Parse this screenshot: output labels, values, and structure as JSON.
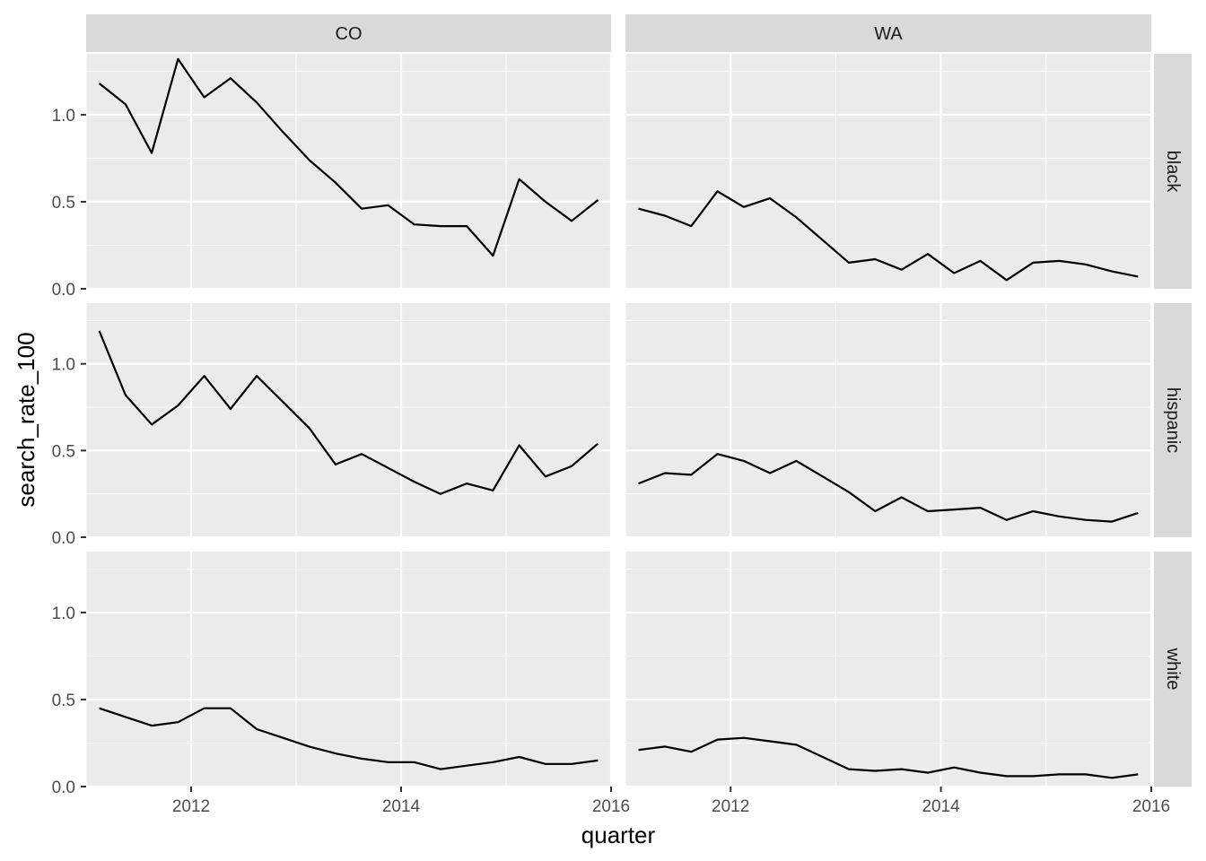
{
  "chart_data": {
    "type": "line",
    "facet_columns": [
      "CO",
      "WA"
    ],
    "facet_rows": [
      "black",
      "hispanic",
      "white"
    ],
    "xlabel": "quarter",
    "ylabel": "search_rate_100",
    "xlim": [
      2011.0,
      2016.0
    ],
    "ylim": [
      0,
      1.35
    ],
    "x_ticks": [
      2012,
      2014,
      2016
    ],
    "y_ticks": [
      0.0,
      0.5,
      1.0
    ],
    "x_tick_labels": [
      "2012",
      "2014",
      "2016"
    ],
    "y_tick_labels": [
      "0.0",
      "0.5",
      "1.0"
    ],
    "x": [
      2011.125,
      2011.375,
      2011.625,
      2011.875,
      2012.125,
      2012.375,
      2012.625,
      2012.875,
      2013.125,
      2013.375,
      2013.625,
      2013.875,
      2014.125,
      2014.375,
      2014.625,
      2014.875,
      2015.125,
      2015.375,
      2015.625,
      2015.875
    ],
    "panels": [
      {
        "column": "CO",
        "row": "black",
        "values": [
          1.18,
          1.06,
          0.78,
          1.32,
          1.1,
          1.21,
          1.07,
          0.9,
          0.74,
          0.61,
          0.46,
          0.48,
          0.37,
          0.36,
          0.36,
          0.19,
          0.63,
          0.5,
          0.39,
          0.51
        ]
      },
      {
        "column": "WA",
        "row": "black",
        "values": [
          0.46,
          0.42,
          0.36,
          0.56,
          0.47,
          0.52,
          0.41,
          0.28,
          0.15,
          0.17,
          0.11,
          0.2,
          0.09,
          0.16,
          0.05,
          0.15,
          0.16,
          0.14,
          0.1,
          0.07
        ]
      },
      {
        "column": "CO",
        "row": "hispanic",
        "values": [
          1.19,
          0.82,
          0.65,
          0.76,
          0.93,
          0.74,
          0.93,
          0.78,
          0.63,
          0.42,
          0.48,
          0.4,
          0.32,
          0.25,
          0.31,
          0.27,
          0.53,
          0.35,
          0.41,
          0.54
        ]
      },
      {
        "column": "WA",
        "row": "hispanic",
        "values": [
          0.31,
          0.37,
          0.36,
          0.48,
          0.44,
          0.37,
          0.44,
          0.35,
          0.26,
          0.15,
          0.23,
          0.15,
          0.16,
          0.17,
          0.1,
          0.15,
          0.12,
          0.1,
          0.09,
          0.14
        ]
      },
      {
        "column": "CO",
        "row": "white",
        "values": [
          0.45,
          0.4,
          0.35,
          0.37,
          0.45,
          0.45,
          0.33,
          0.28,
          0.23,
          0.19,
          0.16,
          0.14,
          0.14,
          0.1,
          0.12,
          0.14,
          0.17,
          0.13,
          0.13,
          0.15
        ]
      },
      {
        "column": "WA",
        "row": "white",
        "values": [
          0.21,
          0.23,
          0.2,
          0.27,
          0.28,
          0.26,
          0.24,
          0.17,
          0.1,
          0.09,
          0.1,
          0.08,
          0.11,
          0.08,
          0.06,
          0.06,
          0.07,
          0.07,
          0.05,
          0.07
        ]
      }
    ],
    "colors": {
      "panel_background": "#ebebeb",
      "strip_background": "#d9d9d9",
      "grid": "#ffffff",
      "line": "#000000"
    },
    "grid": true,
    "legend": "none"
  }
}
